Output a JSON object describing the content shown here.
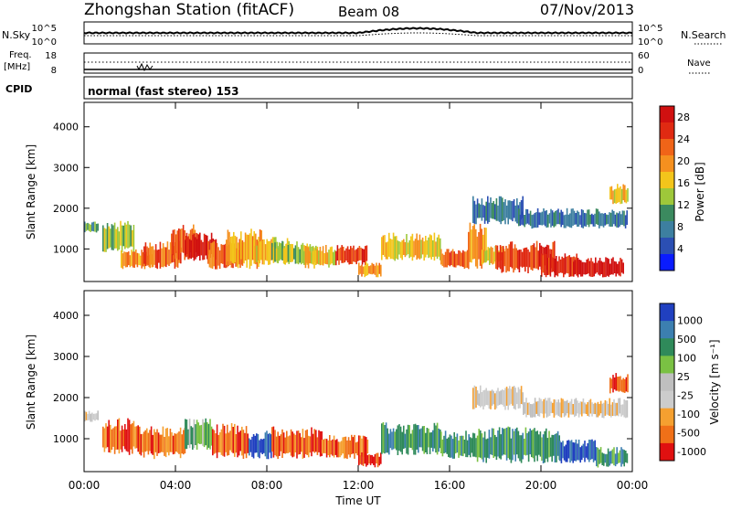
{
  "header": {
    "station": "Zhongshan Station (fitACF)",
    "beam": "Beam 08",
    "date": "07/Nov/2013"
  },
  "strip1": {
    "left_label": "N.Sky",
    "right_label": "N.Search",
    "ticks_left": [
      "10^5",
      "10^0"
    ],
    "ticks_right": [
      "10^5",
      "10^0"
    ]
  },
  "strip2": {
    "left_label_1": "Freq.",
    "left_label_2": "[MHz]",
    "ticks_left": [
      "18",
      "8"
    ],
    "ticks_right": [
      "60",
      "0"
    ],
    "right_label": "Nave"
  },
  "cpid": {
    "label": "CPID",
    "value": "normal (fast stereo) 153"
  },
  "colors": {
    "power": [
      "#0a1cff",
      "#2b4fb3",
      "#3d7fa0",
      "#3b8a5f",
      "#9ec83a",
      "#f3c51b",
      "#f5901f",
      "#f06418",
      "#e02a12",
      "#d01010"
    ],
    "velocity": [
      "#e01010",
      "#f07018",
      "#f5a030",
      "#cccccc",
      "#bfbfbf",
      "#7ac143",
      "#2f8a5a",
      "#3c7fb0",
      "#2040c0"
    ]
  },
  "chart_data": [
    {
      "type": "heatmap",
      "quantity": "Power",
      "ylabel": "Slant Range [km]",
      "xlim": [
        0,
        24
      ],
      "ylim": [
        200,
        4600
      ],
      "yticks": [
        "1000",
        "2000",
        "3000",
        "4000"
      ],
      "colorbar": {
        "title": "Power [dB]",
        "ticks": [
          "4",
          "8",
          "12",
          "16",
          "20",
          "24",
          "28"
        ]
      },
      "patches": [
        {
          "t0": 0.0,
          "t1": 0.6,
          "r0": 1400,
          "r1": 1700,
          "level": 3
        },
        {
          "t0": 0.8,
          "t1": 2.2,
          "r0": 900,
          "r1": 1700,
          "level": 4
        },
        {
          "t0": 1.6,
          "t1": 3.0,
          "r0": 500,
          "r1": 1000,
          "level": 6
        },
        {
          "t0": 2.6,
          "t1": 4.2,
          "r0": 500,
          "r1": 1200,
          "level": 7
        },
        {
          "t0": 3.8,
          "t1": 5.0,
          "r0": 700,
          "r1": 1600,
          "level": 7
        },
        {
          "t0": 4.4,
          "t1": 5.8,
          "r0": 700,
          "r1": 1400,
          "level": 9
        },
        {
          "t0": 5.4,
          "t1": 7.0,
          "r0": 500,
          "r1": 1200,
          "level": 7
        },
        {
          "t0": 6.2,
          "t1": 7.8,
          "r0": 500,
          "r1": 1500,
          "level": 6
        },
        {
          "t0": 7.4,
          "t1": 9.0,
          "r0": 600,
          "r1": 1300,
          "level": 5
        },
        {
          "t0": 8.2,
          "t1": 10.2,
          "r0": 600,
          "r1": 1200,
          "level": 4
        },
        {
          "t0": 9.6,
          "t1": 11.0,
          "r0": 500,
          "r1": 1100,
          "level": 5
        },
        {
          "t0": 11.0,
          "t1": 12.4,
          "r0": 600,
          "r1": 1100,
          "level": 8
        },
        {
          "t0": 12.0,
          "t1": 13.0,
          "r0": 300,
          "r1": 700,
          "level": 6
        },
        {
          "t0": 13.0,
          "t1": 15.6,
          "r0": 700,
          "r1": 1400,
          "level": 5
        },
        {
          "t0": 15.6,
          "t1": 16.8,
          "r0": 500,
          "r1": 1000,
          "level": 7
        },
        {
          "t0": 16.8,
          "t1": 17.6,
          "r0": 500,
          "r1": 1700,
          "level": 6
        },
        {
          "t0": 17.4,
          "t1": 18.4,
          "r0": 600,
          "r1": 1100,
          "level": 5
        },
        {
          "t0": 18.0,
          "t1": 20.6,
          "r0": 400,
          "r1": 1200,
          "level": 8
        },
        {
          "t0": 20.0,
          "t1": 21.6,
          "r0": 300,
          "r1": 900,
          "level": 8
        },
        {
          "t0": 21.4,
          "t1": 23.6,
          "r0": 300,
          "r1": 800,
          "level": 9
        },
        {
          "t0": 17.0,
          "t1": 19.2,
          "r0": 1600,
          "r1": 2300,
          "level": 2
        },
        {
          "t0": 19.0,
          "t1": 23.8,
          "r0": 1500,
          "r1": 2000,
          "level": 2
        },
        {
          "t0": 23.0,
          "t1": 23.8,
          "r0": 2100,
          "r1": 2600,
          "level": 5
        }
      ]
    },
    {
      "type": "heatmap",
      "quantity": "Velocity",
      "ylabel": "Slant Range [km]",
      "xlabel": "Time UT",
      "xlim": [
        0,
        24
      ],
      "ylim": [
        200,
        4600
      ],
      "yticks": [
        "1000",
        "2000",
        "3000",
        "4000"
      ],
      "xticks": [
        "00:00",
        "04:00",
        "08:00",
        "12:00",
        "16:00",
        "20:00",
        "00:00"
      ],
      "colorbar": {
        "title": "Velocity [m s⁻¹]",
        "ticks": [
          "1000",
          "500",
          "100",
          "25",
          "-25",
          "-100",
          "-500",
          "-1000"
        ]
      },
      "patches": [
        {
          "t0": 0.0,
          "t1": 0.6,
          "r0": 1400,
          "r1": 1700,
          "level": 3
        },
        {
          "t0": 0.8,
          "t1": 2.4,
          "r0": 600,
          "r1": 1500,
          "level": 1
        },
        {
          "t0": 2.4,
          "t1": 4.4,
          "r0": 500,
          "r1": 1300,
          "level": 1
        },
        {
          "t0": 4.4,
          "t1": 5.6,
          "r0": 700,
          "r1": 1500,
          "level": 5
        },
        {
          "t0": 5.6,
          "t1": 7.2,
          "r0": 500,
          "r1": 1400,
          "level": 1
        },
        {
          "t0": 7.2,
          "t1": 8.2,
          "r0": 500,
          "r1": 1200,
          "level": 8
        },
        {
          "t0": 8.2,
          "t1": 10.4,
          "r0": 500,
          "r1": 1300,
          "level": 1
        },
        {
          "t0": 10.4,
          "t1": 12.4,
          "r0": 500,
          "r1": 1100,
          "level": 1
        },
        {
          "t0": 12.0,
          "t1": 13.0,
          "r0": 300,
          "r1": 700,
          "level": 0
        },
        {
          "t0": 13.0,
          "t1": 15.6,
          "r0": 600,
          "r1": 1400,
          "level": 6
        },
        {
          "t0": 15.6,
          "t1": 17.0,
          "r0": 500,
          "r1": 1200,
          "level": 6
        },
        {
          "t0": 17.0,
          "t1": 20.8,
          "r0": 400,
          "r1": 1300,
          "level": 6
        },
        {
          "t0": 20.8,
          "t1": 22.4,
          "r0": 400,
          "r1": 1000,
          "level": 8
        },
        {
          "t0": 22.4,
          "t1": 23.8,
          "r0": 300,
          "r1": 800,
          "level": 6
        },
        {
          "t0": 17.0,
          "t1": 19.2,
          "r0": 1700,
          "r1": 2300,
          "level": 3
        },
        {
          "t0": 19.2,
          "t1": 23.8,
          "r0": 1500,
          "r1": 2000,
          "level": 3
        },
        {
          "t0": 23.0,
          "t1": 23.8,
          "r0": 2100,
          "r1": 2600,
          "level": 1
        }
      ]
    }
  ]
}
